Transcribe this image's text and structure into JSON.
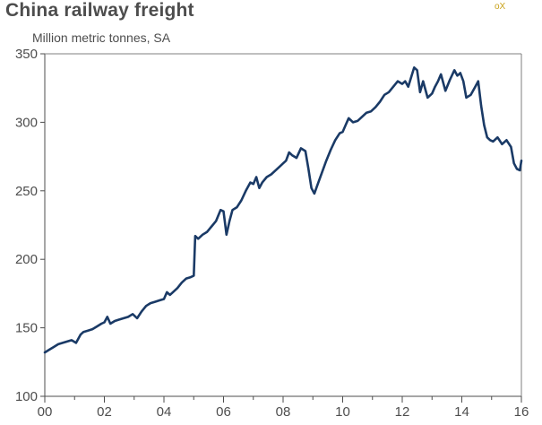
{
  "chart_data": {
    "type": "line",
    "title": "China railway freight",
    "subtitle": "Million metric tonnes, SA",
    "logo": "oX",
    "xlabel": "",
    "ylabel": "",
    "xlim": [
      2000,
      2016
    ],
    "ylim": [
      100,
      350
    ],
    "y_ticks": [
      100,
      150,
      200,
      250,
      300,
      350
    ],
    "x_ticks": [
      2000,
      2002,
      2004,
      2006,
      2008,
      2010,
      2012,
      2014,
      2016
    ],
    "x_tick_labels": [
      "00",
      "02",
      "04",
      "06",
      "08",
      "10",
      "12",
      "14",
      "16"
    ],
    "grid": "off",
    "line_color": "#1a3a66",
    "series": [
      {
        "x": [
          2000.0,
          2000.15,
          2000.3,
          2000.45,
          2000.6,
          2000.75,
          2000.9,
          2001.05,
          2001.2,
          2001.3,
          2001.45,
          2001.6,
          2001.75,
          2001.9,
          2002.0,
          2002.1,
          2002.2,
          2002.35,
          2002.5,
          2002.65,
          2002.8,
          2002.95,
          2003.1,
          2003.25,
          2003.4,
          2003.55,
          2003.7,
          2003.85,
          2004.0,
          2004.1,
          2004.2,
          2004.3,
          2004.45,
          2004.6,
          2004.75,
          2004.9,
          2005.0,
          2005.05,
          2005.15,
          2005.3,
          2005.45,
          2005.6,
          2005.75,
          2005.9,
          2006.0,
          2006.1,
          2006.2,
          2006.3,
          2006.45,
          2006.6,
          2006.75,
          2006.9,
          2007.0,
          2007.1,
          2007.2,
          2007.3,
          2007.45,
          2007.6,
          2007.75,
          2007.9,
          2008.0,
          2008.1,
          2008.2,
          2008.3,
          2008.45,
          2008.6,
          2008.75,
          2008.85,
          2008.95,
          2009.05,
          2009.15,
          2009.3,
          2009.45,
          2009.6,
          2009.75,
          2009.9,
          2010.0,
          2010.1,
          2010.2,
          2010.35,
          2010.5,
          2010.65,
          2010.8,
          2010.95,
          2011.1,
          2011.25,
          2011.4,
          2011.55,
          2011.7,
          2011.85,
          2012.0,
          2012.1,
          2012.2,
          2012.3,
          2012.4,
          2012.5,
          2012.6,
          2012.7,
          2012.85,
          2013.0,
          2013.1,
          2013.2,
          2013.3,
          2013.45,
          2013.6,
          2013.75,
          2013.85,
          2013.95,
          2014.05,
          2014.15,
          2014.3,
          2014.45,
          2014.55,
          2014.65,
          2014.75,
          2014.85,
          2014.95,
          2015.05,
          2015.2,
          2015.35,
          2015.5,
          2015.65,
          2015.75,
          2015.85,
          2015.95,
          2016.0
        ],
        "values": [
          132,
          134,
          136,
          138,
          139,
          140,
          141,
          139,
          145,
          147,
          148,
          149,
          151,
          153,
          154,
          158,
          153,
          155,
          156,
          157,
          158,
          160,
          157,
          162,
          166,
          168,
          169,
          170,
          171,
          176,
          174,
          176,
          179,
          183,
          186,
          187,
          188,
          217,
          215,
          218,
          220,
          224,
          228,
          236,
          235,
          218,
          228,
          236,
          238,
          243,
          250,
          256,
          255,
          260,
          252,
          256,
          260,
          262,
          265,
          268,
          270,
          272,
          278,
          276,
          274,
          281,
          279,
          266,
          252,
          248,
          254,
          263,
          272,
          280,
          287,
          292,
          293,
          298,
          303,
          300,
          301,
          304,
          307,
          308,
          311,
          315,
          320,
          322,
          326,
          330,
          328,
          330,
          326,
          333,
          340,
          338,
          322,
          330,
          318,
          321,
          326,
          330,
          335,
          323,
          331,
          338,
          334,
          336,
          330,
          318,
          320,
          326,
          330,
          312,
          298,
          289,
          287,
          286,
          289,
          284,
          287,
          282,
          270,
          266,
          265,
          272
        ]
      }
    ]
  }
}
